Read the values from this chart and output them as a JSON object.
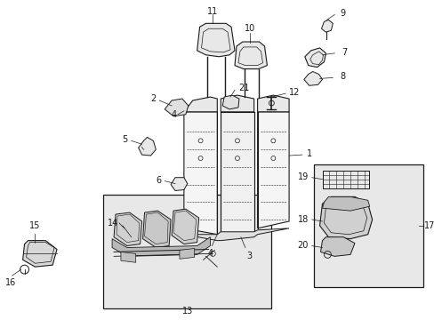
{
  "bg_color": "#ffffff",
  "line_color": "#1a1a1a",
  "gray_fill": "#d8d8d8",
  "box_fill": "#ebebeb",
  "figsize": [
    4.89,
    3.6
  ],
  "dpi": 100,
  "label_size": 7.0
}
